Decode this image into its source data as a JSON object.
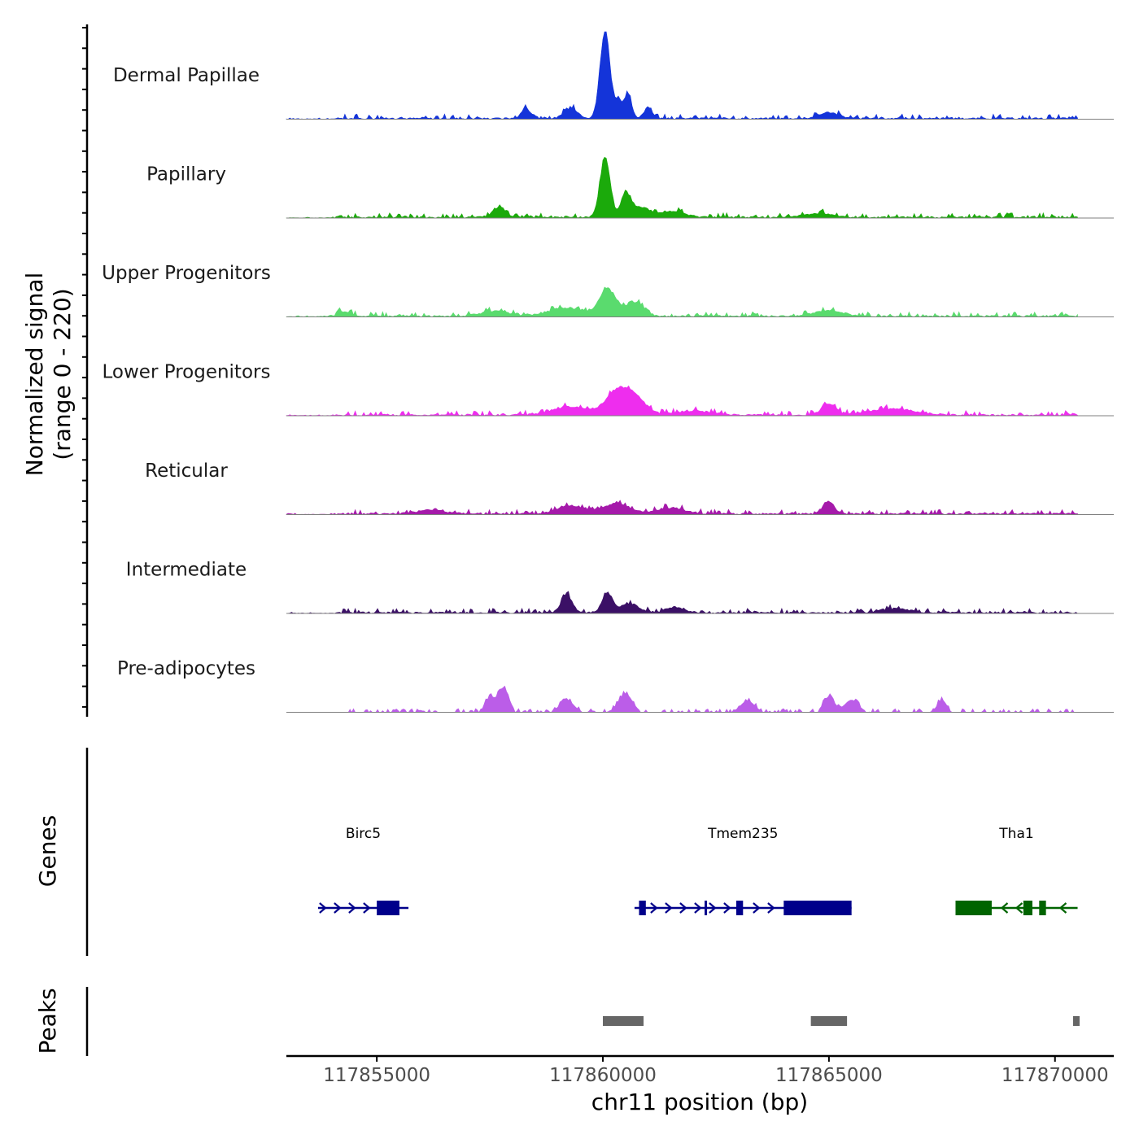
{
  "chart_data": {
    "type": "area",
    "title": "",
    "chromosome": "chr11",
    "xlabel": "chr11 position (bp)",
    "ylabel": "Normalized signal",
    "ylabel_range": "(range 0 - 220)",
    "ylim": [
      0,
      220
    ],
    "xlim": [
      117853000,
      117871300
    ],
    "signal_x_range": [
      117853000,
      117870500
    ],
    "x_ticks": [
      {
        "value": 117855000,
        "label": "117855000"
      },
      {
        "value": 117860000,
        "label": "117860000"
      },
      {
        "value": 117865000,
        "label": "117865000"
      },
      {
        "value": 117870000,
        "label": "117870000"
      }
    ],
    "tracks": [
      {
        "name": "Dermal Papillae",
        "color": "#1434D9",
        "peaks": [
          [
            117860050,
            215,
            110
          ],
          [
            117860550,
            60,
            80
          ],
          [
            117860350,
            40,
            70
          ],
          [
            117859300,
            25,
            150
          ],
          [
            117861000,
            25,
            100
          ],
          [
            117858300,
            25,
            100
          ],
          [
            117865000,
            15,
            200
          ]
        ]
      },
      {
        "name": "Papillary",
        "color": "#1BAA0B",
        "peaks": [
          [
            117860050,
            148,
            110
          ],
          [
            117860500,
            55,
            100
          ],
          [
            117860800,
            25,
            200
          ],
          [
            117857700,
            22,
            150
          ],
          [
            117861500,
            15,
            300
          ],
          [
            117864800,
            10,
            300
          ]
        ]
      },
      {
        "name": "Upper Progenitors",
        "color": "#5ADB6E",
        "peaks": [
          [
            117860100,
            65,
            180
          ],
          [
            117860700,
            35,
            200
          ],
          [
            117859200,
            20,
            400
          ],
          [
            117857600,
            12,
            300
          ],
          [
            117865000,
            15,
            300
          ],
          [
            117854200,
            12,
            200
          ]
        ]
      },
      {
        "name": "Lower Progenitors",
        "color": "#EE2DEE",
        "peaks": [
          [
            117860300,
            52,
            250
          ],
          [
            117860700,
            40,
            250
          ],
          [
            117859300,
            20,
            400
          ],
          [
            117865000,
            28,
            150
          ],
          [
            117866400,
            15,
            500
          ],
          [
            117862000,
            10,
            400
          ]
        ]
      },
      {
        "name": "Reticular",
        "color": "#A51AAA",
        "peaks": [
          [
            117860300,
            25,
            300
          ],
          [
            117859300,
            20,
            300
          ],
          [
            117865000,
            30,
            120
          ],
          [
            117861500,
            15,
            300
          ],
          [
            117856200,
            10,
            300
          ]
        ]
      },
      {
        "name": "Intermediate",
        "color": "#3B1066",
        "peaks": [
          [
            117859200,
            44,
            120
          ],
          [
            117860100,
            47,
            120
          ],
          [
            117860600,
            22,
            200
          ],
          [
            117861600,
            14,
            200
          ],
          [
            117866500,
            10,
            300
          ]
        ]
      },
      {
        "name": "Pre-adipocytes",
        "color": "#BB5DE8",
        "peaks": [
          [
            117857800,
            60,
            120
          ],
          [
            117857500,
            35,
            100
          ],
          [
            117860500,
            45,
            150
          ],
          [
            117865000,
            38,
            120
          ],
          [
            117865500,
            30,
            150
          ],
          [
            117863200,
            28,
            150
          ],
          [
            117867500,
            30,
            100
          ],
          [
            117859200,
            30,
            150
          ]
        ]
      }
    ],
    "genes": [
      {
        "name": "Birc5",
        "strand": "+",
        "color": "#00008B",
        "start": 117853700,
        "end": 117855700,
        "exons": [
          [
            117855000,
            117855500
          ]
        ]
      },
      {
        "name": "Tmem235",
        "strand": "+",
        "color": "#00008B",
        "start": 117860700,
        "end": 117865500,
        "exons": [
          [
            117860800,
            117860950
          ],
          [
            117862250,
            117862300
          ],
          [
            117862950,
            117863100
          ],
          [
            117864000,
            117865500
          ]
        ]
      },
      {
        "name": "Tha1",
        "strand": "-",
        "color": "#006400",
        "start": 117867800,
        "end": 117870500,
        "exons": [
          [
            117867800,
            117868600
          ],
          [
            117869300,
            117869500
          ],
          [
            117869650,
            117869800
          ]
        ]
      }
    ],
    "peaks": [
      [
        117860000,
        117860900
      ],
      [
        117864600,
        117865400
      ],
      [
        117870400,
        117870500
      ]
    ]
  },
  "labels": {
    "genes_track": "Genes",
    "peaks_track": "Peaks"
  },
  "colors": {
    "baseline": "#7f7f7f",
    "peak_bar": "#666666",
    "axis": "#000000"
  }
}
